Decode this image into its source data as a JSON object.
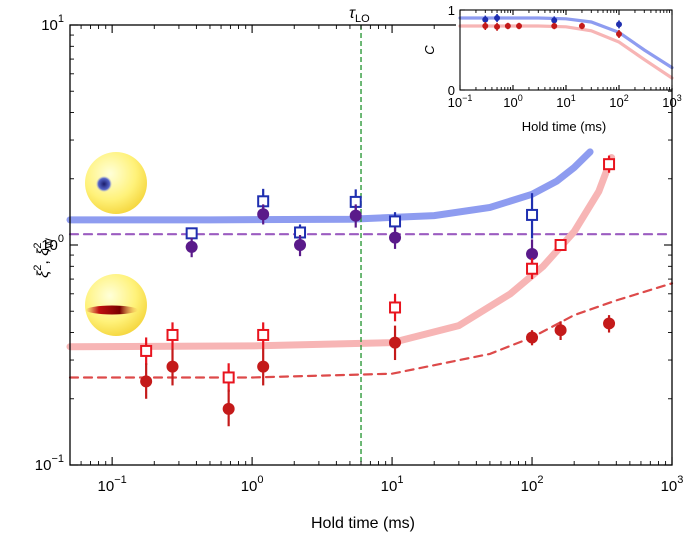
{
  "chart_data": [
    {
      "type": "scatter",
      "xlabel": "Hold time (ms)",
      "ylabel": "ξ², ξ²_W",
      "ylabel_parts": {
        "base": "ξ",
        "sup": "2",
        "sep": ", ",
        "base2": "ξ",
        "sup2": "2",
        "sub2": "W"
      },
      "x_scale": "log",
      "y_scale": "log",
      "xlim": [
        0.05,
        1000
      ],
      "ylim": [
        0.1,
        10
      ],
      "x_ticks": [
        {
          "value": 0.1,
          "base": "10",
          "exp": "−1"
        },
        {
          "value": 1,
          "base": "10",
          "exp": "0"
        },
        {
          "value": 10,
          "base": "10",
          "exp": "1"
        },
        {
          "value": 100,
          "base": "10",
          "exp": "2"
        },
        {
          "value": 1000,
          "base": "10",
          "exp": "3"
        }
      ],
      "y_ticks": [
        {
          "value": 0.1,
          "base": "10",
          "exp": "−1"
        },
        {
          "value": 1,
          "base": "10",
          "exp": "0"
        },
        {
          "value": 10,
          "base": "10",
          "exp": "1"
        }
      ],
      "vline": {
        "x": 6,
        "label_base": "τ",
        "label_sub": "LO",
        "color": "#2e9a3a",
        "style": "dashed"
      },
      "colors": {
        "blue": "#1f2fb0",
        "purple": "#5a1a8a",
        "red": "#c41a1a",
        "open_red": "#e8141e",
        "blue_curve": "#8e9cf0",
        "red_curve": "#f7b5b5",
        "purple_dash": "#9b5cc0",
        "red_dash": "#dd4a4a",
        "sphere": "#fff27a"
      },
      "series": [
        {
          "marker": "open-square",
          "color": "#1f2fb0",
          "points": [
            {
              "x": 0.37,
              "y": 1.13,
              "err": [
                0.06,
                0.06
              ]
            },
            {
              "x": 1.2,
              "y": 1.58,
              "err": [
                0.2,
                0.22
              ]
            },
            {
              "x": 2.2,
              "y": 1.14,
              "err": [
                0.1,
                0.1
              ]
            },
            {
              "x": 5.5,
              "y": 1.57,
              "err": [
                0.2,
                0.22
              ]
            },
            {
              "x": 10.5,
              "y": 1.28,
              "err": [
                0.12,
                0.13
              ]
            },
            {
              "x": 100,
              "y": 1.37,
              "err": [
                0.3,
                0.35
              ]
            }
          ]
        },
        {
          "marker": "filled-circle",
          "color": "#5a1a8a",
          "points": [
            {
              "x": 0.37,
              "y": 0.98,
              "err": [
                0.1,
                0.1
              ]
            },
            {
              "x": 1.2,
              "y": 1.38,
              "err": [
                0.14,
                0.15
              ]
            },
            {
              "x": 2.2,
              "y": 1.0,
              "err": [
                0.11,
                0.11
              ]
            },
            {
              "x": 5.5,
              "y": 1.36,
              "err": [
                0.16,
                0.17
              ]
            },
            {
              "x": 10.5,
              "y": 1.08,
              "err": [
                0.12,
                0.12
              ]
            },
            {
              "x": 100,
              "y": 0.91,
              "err": [
                0.14,
                0.15
              ]
            }
          ]
        },
        {
          "marker": "open-square",
          "color": "#e8141e",
          "points": [
            {
              "x": 0.175,
              "y": 0.33,
              "err": [
                0.045,
                0.05
              ]
            },
            {
              "x": 0.27,
              "y": 0.39,
              "err": [
                0.05,
                0.055
              ]
            },
            {
              "x": 0.68,
              "y": 0.25,
              "err": [
                0.035,
                0.04
              ]
            },
            {
              "x": 1.2,
              "y": 0.39,
              "err": [
                0.05,
                0.055
              ]
            },
            {
              "x": 10.5,
              "y": 0.52,
              "err": [
                0.07,
                0.08
              ]
            },
            {
              "x": 100,
              "y": 0.78,
              "err": [
                0.08,
                0.09
              ]
            },
            {
              "x": 160,
              "y": 1.0,
              "err": [
                0.06,
                0.06
              ]
            },
            {
              "x": 355,
              "y": 2.33,
              "err": [
                0.2,
                0.22
              ]
            }
          ]
        },
        {
          "marker": "filled-circle",
          "color": "#c41a1a",
          "points": [
            {
              "x": 0.175,
              "y": 0.24,
              "err": [
                0.04,
                0.05
              ]
            },
            {
              "x": 0.27,
              "y": 0.28,
              "err": [
                0.05,
                0.06
              ]
            },
            {
              "x": 0.68,
              "y": 0.18,
              "err": [
                0.03,
                0.04
              ]
            },
            {
              "x": 1.2,
              "y": 0.28,
              "err": [
                0.05,
                0.06
              ]
            },
            {
              "x": 10.5,
              "y": 0.36,
              "err": [
                0.06,
                0.07
              ]
            },
            {
              "x": 100,
              "y": 0.38,
              "err": [
                0.03,
                0.03
              ]
            },
            {
              "x": 160,
              "y": 0.41,
              "err": [
                0.04,
                0.04
              ]
            },
            {
              "x": 355,
              "y": 0.44,
              "err": [
                0.04,
                0.04
              ]
            }
          ]
        }
      ],
      "curves": [
        {
          "style": "solid",
          "color": "#8e9cf0",
          "points": [
            [
              0.05,
              1.3
            ],
            [
              0.5,
              1.3
            ],
            [
              5,
              1.31
            ],
            [
              20,
              1.36
            ],
            [
              50,
              1.48
            ],
            [
              100,
              1.7
            ],
            [
              150,
              1.95
            ],
            [
              200,
              2.25
            ],
            [
              260,
              2.65
            ]
          ]
        },
        {
          "style": "dashed",
          "color": "#9b5cc0",
          "points": [
            [
              0.05,
              1.12
            ],
            [
              1000,
              1.12
            ]
          ]
        },
        {
          "style": "solid",
          "color": "#f7b5b5",
          "points": [
            [
              0.05,
              0.345
            ],
            [
              1,
              0.348
            ],
            [
              10,
              0.36
            ],
            [
              30,
              0.43
            ],
            [
              70,
              0.6
            ],
            [
              120,
              0.8
            ],
            [
              200,
              1.15
            ],
            [
              300,
              1.75
            ],
            [
              370,
              2.5
            ]
          ]
        },
        {
          "style": "dashed",
          "color": "#dd4a4a",
          "points": [
            [
              0.05,
              0.25
            ],
            [
              1,
              0.25
            ],
            [
              10,
              0.26
            ],
            [
              50,
              0.32
            ],
            [
              100,
              0.38
            ],
            [
              200,
              0.48
            ],
            [
              400,
              0.56
            ],
            [
              1000,
              0.67
            ]
          ]
        }
      ]
    },
    {
      "type": "scatter",
      "inset": true,
      "xlabel": "Hold time (ms)",
      "ylabel": "C",
      "x_scale": "log",
      "y_scale": "linear",
      "xlim": [
        0.1,
        1000
      ],
      "ylim": [
        0,
        1
      ],
      "x_ticks": [
        {
          "value": 0.1,
          "base": "10",
          "exp": "−1"
        },
        {
          "value": 1,
          "base": "10",
          "exp": "0"
        },
        {
          "value": 10,
          "base": "10",
          "exp": "1"
        },
        {
          "value": 100,
          "base": "10",
          "exp": "2"
        },
        {
          "value": 1000,
          "base": "10",
          "exp": "3"
        }
      ],
      "y_ticks": [
        {
          "value": 0,
          "label": "0"
        },
        {
          "value": 1,
          "label": "1"
        }
      ],
      "series": [
        {
          "marker": "filled-circle",
          "color": "#1f2fb0",
          "points": [
            {
              "x": 0.3,
              "y": 0.88,
              "err": [
                0.05,
                0.05
              ]
            },
            {
              "x": 0.5,
              "y": 0.9,
              "err": [
                0.05,
                0.05
              ]
            },
            {
              "x": 6,
              "y": 0.87,
              "err": [
                0.05,
                0.05
              ]
            },
            {
              "x": 100,
              "y": 0.82,
              "err": [
                0.05,
                0.05
              ]
            }
          ]
        },
        {
          "marker": "filled-circle",
          "color": "#c41a1a",
          "points": [
            {
              "x": 0.3,
              "y": 0.8,
              "err": [
                0.05,
                0.05
              ]
            },
            {
              "x": 0.5,
              "y": 0.79,
              "err": [
                0.05,
                0.05
              ]
            },
            {
              "x": 0.8,
              "y": 0.8,
              "err": [
                0.04,
                0.04
              ]
            },
            {
              "x": 1.3,
              "y": 0.8,
              "err": [
                0.04,
                0.04
              ]
            },
            {
              "x": 6,
              "y": 0.8,
              "err": [
                0.04,
                0.04
              ]
            },
            {
              "x": 20,
              "y": 0.8,
              "err": [
                0.04,
                0.04
              ]
            },
            {
              "x": 100,
              "y": 0.7,
              "err": [
                0.05,
                0.05
              ]
            }
          ]
        }
      ],
      "curves": [
        {
          "style": "solid",
          "color": "#8e9cf0",
          "points": [
            [
              0.1,
              0.9
            ],
            [
              3,
              0.9
            ],
            [
              10,
              0.89
            ],
            [
              30,
              0.85
            ],
            [
              100,
              0.72
            ],
            [
              300,
              0.5
            ],
            [
              1000,
              0.28
            ]
          ]
        },
        {
          "style": "solid",
          "color": "#f7b5b5",
          "points": [
            [
              0.1,
              0.8
            ],
            [
              3,
              0.8
            ],
            [
              10,
              0.79
            ],
            [
              30,
              0.74
            ],
            [
              100,
              0.6
            ],
            [
              300,
              0.38
            ],
            [
              1000,
              0.15
            ]
          ]
        }
      ]
    }
  ]
}
